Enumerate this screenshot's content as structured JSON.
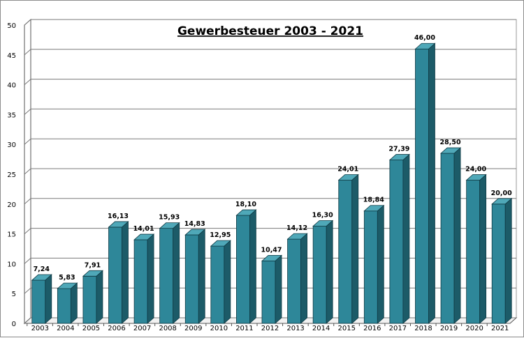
{
  "chart_data": {
    "type": "bar",
    "title": "Gewerbesteuer 2003 - 2021",
    "xlabel": "",
    "ylabel": "",
    "categories": [
      "2003",
      "2004",
      "2005",
      "2006",
      "2007",
      "2008",
      "2009",
      "2010",
      "2011",
      "2012",
      "2013",
      "2014",
      "2015",
      "2016",
      "2017",
      "2018",
      "2019",
      "2020",
      "2021"
    ],
    "values": [
      7.24,
      5.83,
      7.91,
      16.13,
      14.01,
      15.93,
      14.83,
      12.95,
      18.1,
      10.47,
      14.12,
      16.3,
      24.01,
      18.84,
      27.39,
      46.0,
      28.5,
      24.0,
      20.0
    ],
    "value_labels": [
      "7,24",
      "5,83",
      "7,91",
      "16,13",
      "14,01",
      "15,93",
      "14,83",
      "12,95",
      "18,10",
      "10,47",
      "14,12",
      "16,30",
      "24,01",
      "18,84",
      "27,39",
      "46,00",
      "28,50",
      "24,00",
      "20,00"
    ],
    "ylim": [
      0,
      50
    ],
    "yticks": [
      "0",
      "5",
      "10",
      "15",
      "20",
      "25",
      "30",
      "35",
      "40",
      "45",
      "50"
    ],
    "grid": true,
    "legend": "none",
    "bar_color": "#2e8799",
    "bar_side_color": "#1c5b68",
    "bar_top_color": "#4fa8b8"
  }
}
